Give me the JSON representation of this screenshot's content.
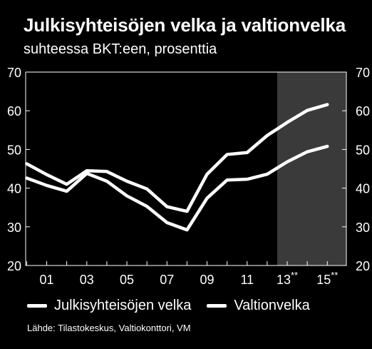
{
  "colors": {
    "background": "#000000",
    "foreground": "#ffffff",
    "forecast_band": "#3a3a3a"
  },
  "title": "Julkisyhteisöjen velka ja valtionvelka",
  "subtitle": "suhteessa BKT:een, prosenttia",
  "source": "Lähde: Tilastokeskus, Valtiokonttori, VM",
  "chart_data": {
    "type": "line",
    "x": [
      2000,
      2001,
      2002,
      2003,
      2004,
      2005,
      2006,
      2007,
      2008,
      2009,
      2010,
      2011,
      2012,
      2013,
      2014,
      2015
    ],
    "x_tick_labels": [
      "01",
      "03",
      "05",
      "07",
      "09",
      "11",
      "13",
      "15"
    ],
    "x_tick_values": [
      2001,
      2003,
      2005,
      2007,
      2009,
      2011,
      2013,
      2015
    ],
    "x_tick_markers": [
      "",
      "",
      "",
      "",
      "",
      "",
      "**",
      "**"
    ],
    "xlim": [
      1999.95,
      2015.95
    ],
    "ylim": [
      20,
      70
    ],
    "y_ticks": [
      20,
      30,
      40,
      50,
      60,
      70
    ],
    "grid": false,
    "forecast_band": [
      2012.5,
      2015.95
    ],
    "legend_position": "bottom",
    "series": [
      {
        "name": "Julkisyhteisöjen velka",
        "values": [
          46.3,
          43.5,
          41.0,
          44.5,
          44.3,
          41.8,
          39.8,
          35.2,
          34.0,
          43.6,
          48.7,
          49.2,
          53.6,
          57.0,
          60.1,
          61.6
        ]
      },
      {
        "name": "Valtionvelka",
        "values": [
          42.6,
          40.7,
          39.2,
          43.8,
          41.8,
          38.0,
          35.3,
          31.1,
          29.2,
          37.4,
          42.1,
          42.3,
          43.6,
          46.8,
          49.4,
          50.8
        ]
      }
    ]
  }
}
